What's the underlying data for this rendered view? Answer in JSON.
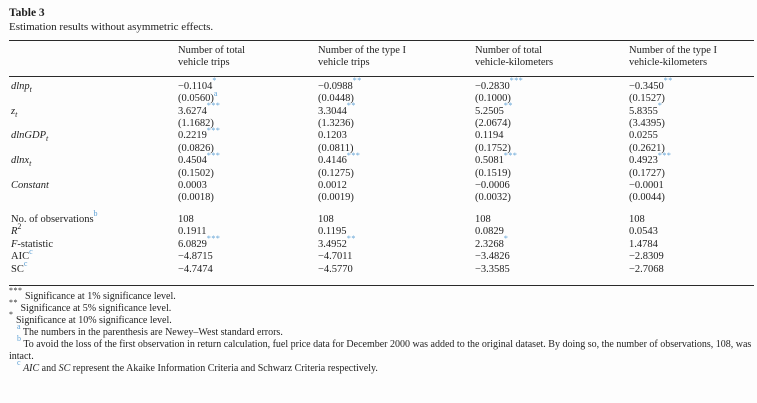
{
  "colors": {
    "text": "#1f1f1f",
    "superscript_blue": "#5b9fd4",
    "rule": "#2a2a2a",
    "background": "#fdfdfd"
  },
  "table": {
    "label": "Table 3",
    "caption": "Estimation results without asymmetric effects.",
    "headers": [
      {
        "line1": "Number of total",
        "line2": "vehicle trips"
      },
      {
        "line1": "Number of the type I",
        "line2": "vehicle trips"
      },
      {
        "line1": "Number of total",
        "line2": "vehicle-kilometers"
      },
      {
        "line1": "Number of the type I",
        "line2": "vehicle-kilometers"
      }
    ],
    "coef_rows": [
      {
        "it": "dlnp",
        "sub": "t",
        "cells": [
          {
            "est": "−0.1104",
            "stars": "*",
            "se": "(0.0560)",
            "sesup": "a"
          },
          {
            "est": "−0.0988",
            "stars": "**",
            "se": "(0.0448)",
            "sesup": ""
          },
          {
            "est": "−0.2830",
            "stars": "***",
            "se": "(0.1000)",
            "sesup": ""
          },
          {
            "est": "−0.3450",
            "stars": "**",
            "se": "(0.1527)",
            "sesup": ""
          }
        ]
      },
      {
        "it": "z",
        "sub": "t",
        "cells": [
          {
            "est": "3.6274",
            "stars": "***",
            "se": "(1.1682)",
            "sesup": ""
          },
          {
            "est": "3.3044",
            "stars": "**",
            "se": "(1.3236)",
            "sesup": ""
          },
          {
            "est": "5.2505",
            "stars": "**",
            "se": "(2.0674)",
            "sesup": ""
          },
          {
            "est": "5.8355",
            "stars": "*",
            "se": "(3.4395)",
            "sesup": ""
          }
        ]
      },
      {
        "it": "dlnGDP",
        "sub": "t",
        "cells": [
          {
            "est": "0.2219",
            "stars": "***",
            "se": "(0.0826)",
            "sesup": ""
          },
          {
            "est": "0.1203",
            "stars": "",
            "se": "(0.0811)",
            "sesup": ""
          },
          {
            "est": "0.1194",
            "stars": "",
            "se": "(0.1752)",
            "sesup": ""
          },
          {
            "est": "0.0255",
            "stars": "",
            "se": "(0.2621)",
            "sesup": ""
          }
        ]
      },
      {
        "it": "dlnx",
        "sub": "t",
        "cells": [
          {
            "est": "0.4504",
            "stars": "***",
            "se": "(0.1502)",
            "sesup": ""
          },
          {
            "est": "0.4146",
            "stars": "***",
            "se": "(0.1275)",
            "sesup": ""
          },
          {
            "est": "0.5081",
            "stars": "***",
            "se": "(0.1519)",
            "sesup": ""
          },
          {
            "est": "0.4923",
            "stars": "***",
            "se": "(0.1727)",
            "sesup": ""
          }
        ]
      },
      {
        "it": "Constant",
        "sub": "",
        "cells": [
          {
            "est": "0.0003",
            "stars": "",
            "se": "(0.0018)",
            "sesup": ""
          },
          {
            "est": "0.0012",
            "stars": "",
            "se": "(0.0019)",
            "sesup": ""
          },
          {
            "est": "−0.0006",
            "stars": "",
            "se": "(0.0032)",
            "sesup": ""
          },
          {
            "est": "−0.0001",
            "stars": "",
            "se": "(0.0044)",
            "sesup": ""
          }
        ]
      }
    ],
    "stat_rows": [
      {
        "it": "",
        "txt": "No. of observations",
        "sup": "b",
        "sup2": "",
        "values": [
          {
            "v": "108",
            "stars": ""
          },
          {
            "v": "108",
            "stars": ""
          },
          {
            "v": "108",
            "stars": ""
          },
          {
            "v": "108",
            "stars": ""
          }
        ]
      },
      {
        "it": "R",
        "txt": "",
        "sup": "",
        "sup2": "2",
        "values": [
          {
            "v": "0.1911",
            "stars": ""
          },
          {
            "v": "0.1195",
            "stars": ""
          },
          {
            "v": "0.0829",
            "stars": ""
          },
          {
            "v": "0.0543",
            "stars": ""
          }
        ]
      },
      {
        "it": "F",
        "txt": "-statistic",
        "sup": "",
        "sup2": "",
        "values": [
          {
            "v": "6.0829",
            "stars": "***"
          },
          {
            "v": "3.4952",
            "stars": "**"
          },
          {
            "v": "2.3268",
            "stars": "*"
          },
          {
            "v": "1.4784",
            "stars": ""
          }
        ]
      },
      {
        "it": "",
        "txt": "AIC",
        "sup": "c",
        "sup2": "",
        "values": [
          {
            "v": "−4.8715",
            "stars": ""
          },
          {
            "v": "−4.7011",
            "stars": ""
          },
          {
            "v": "−3.4826",
            "stars": ""
          },
          {
            "v": "−2.8309",
            "stars": ""
          }
        ]
      },
      {
        "it": "",
        "txt": "SC",
        "sup": "c",
        "sup2": "",
        "values": [
          {
            "v": "−4.7474",
            "stars": ""
          },
          {
            "v": "−4.5770",
            "stars": ""
          },
          {
            "v": "−3.3585",
            "stars": ""
          },
          {
            "v": "−2.7068",
            "stars": ""
          }
        ]
      }
    ]
  },
  "footnotes": {
    "sig": [
      {
        "marker": "***",
        "text": "Significance at 1% significance level."
      },
      {
        "marker": "**",
        "text": "Significance at 5% significance level."
      },
      {
        "marker": "*",
        "text": "Significance at 10% significance level."
      }
    ],
    "a": {
      "marker": "a",
      "text": "The numbers in the parenthesis are Newey–West standard errors."
    },
    "b": {
      "marker": "b",
      "text": "To avoid the loss of the first observation in return calculation, fuel price data for December 2000 was added to the original dataset. By doing so, the number of observations, 108, was intact."
    },
    "c": {
      "marker": "c",
      "i1": "AIC",
      "mid": " and ",
      "i2": "SC",
      "rest": " represent the Akaike Information Criteria and Schwarz Criteria respectively."
    }
  }
}
